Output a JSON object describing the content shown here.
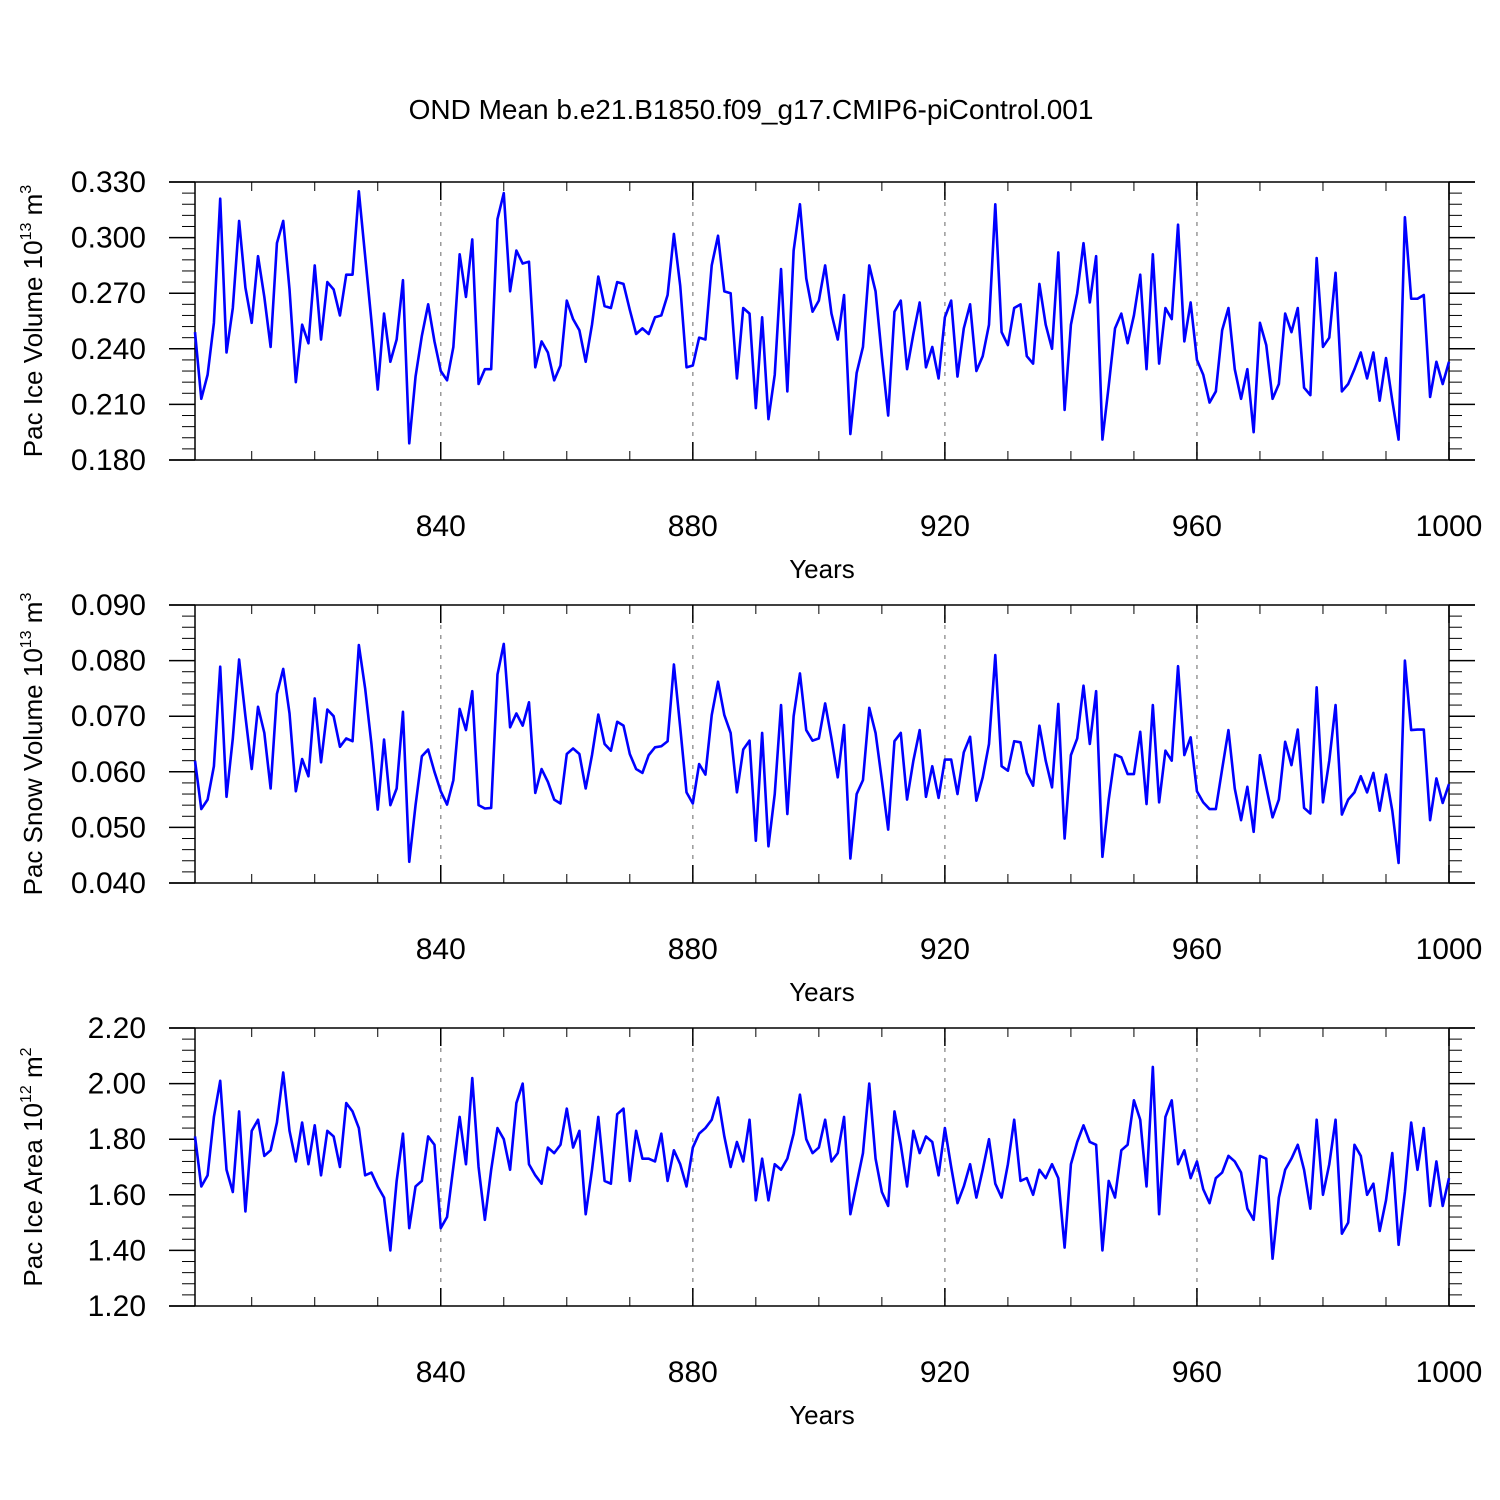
{
  "title": "OND Mean b.e21.B1850.f09_g17.CMIP6-piControl.001",
  "colors": {
    "series": "#0000ff",
    "axis": "#000000",
    "grid": "#999999"
  },
  "chart_data": [
    {
      "type": "line",
      "ylabel_main": "Pac Ice Volume 10",
      "ylabel_exp": "13",
      "ylabel_unit": " m",
      "ylabel_unit_exp": "3",
      "xlabel": "Years",
      "xlim": [
        801,
        1000
      ],
      "ylim": [
        0.18,
        0.33
      ],
      "xticks": [
        840,
        880,
        920,
        960,
        1000
      ],
      "xtick_labels": [
        "840",
        "880",
        "920",
        "960",
        "1000"
      ],
      "yticks": [
        0.18,
        0.21,
        0.24,
        0.27,
        0.3,
        0.33
      ],
      "ytick_labels": [
        "0.180",
        "0.210",
        "0.240",
        "0.270",
        "0.300",
        "0.330"
      ],
      "grid_x": [
        840,
        880,
        920,
        960
      ],
      "series": [
        {
          "name": "Pac Ice Volume",
          "x_start": 801,
          "values": [
            0.249,
            0.213,
            0.226,
            0.254,
            0.321,
            0.238,
            0.262,
            0.309,
            0.273,
            0.254,
            0.29,
            0.268,
            0.241,
            0.297,
            0.309,
            0.272,
            0.222,
            0.253,
            0.243,
            0.285,
            0.245,
            0.276,
            0.272,
            0.258,
            0.28,
            0.28,
            0.325,
            0.29,
            0.255,
            0.218,
            0.259,
            0.233,
            0.245,
            0.277,
            0.189,
            0.225,
            0.247,
            0.264,
            0.244,
            0.228,
            0.223,
            0.241,
            0.291,
            0.268,
            0.299,
            0.221,
            0.229,
            0.229,
            0.31,
            0.324,
            0.271,
            0.293,
            0.286,
            0.287,
            0.23,
            0.244,
            0.238,
            0.223,
            0.231,
            0.266,
            0.256,
            0.25,
            0.233,
            0.253,
            0.279,
            0.263,
            0.262,
            0.276,
            0.275,
            0.261,
            0.248,
            0.251,
            0.248,
            0.257,
            0.258,
            0.269,
            0.302,
            0.274,
            0.23,
            0.231,
            0.246,
            0.245,
            0.285,
            0.301,
            0.271,
            0.27,
            0.224,
            0.262,
            0.259,
            0.208,
            0.257,
            0.202,
            0.226,
            0.283,
            0.217,
            0.293,
            0.318,
            0.278,
            0.26,
            0.266,
            0.285,
            0.259,
            0.245,
            0.269,
            0.194,
            0.227,
            0.241,
            0.285,
            0.271,
            0.236,
            0.204,
            0.26,
            0.266,
            0.229,
            0.248,
            0.265,
            0.23,
            0.241,
            0.224,
            0.257,
            0.266,
            0.225,
            0.251,
            0.264,
            0.228,
            0.236,
            0.253,
            0.318,
            0.249,
            0.242,
            0.262,
            0.264,
            0.236,
            0.232,
            0.275,
            0.253,
            0.24,
            0.292,
            0.207,
            0.253,
            0.27,
            0.297,
            0.265,
            0.29,
            0.191,
            0.22,
            0.251,
            0.259,
            0.243,
            0.258,
            0.28,
            0.229,
            0.291,
            0.232,
            0.262,
            0.256,
            0.307,
            0.244,
            0.265,
            0.234,
            0.226,
            0.211,
            0.217,
            0.25,
            0.262,
            0.229,
            0.213,
            0.229,
            0.195,
            0.254,
            0.242,
            0.213,
            0.221,
            0.259,
            0.249,
            0.262,
            0.219,
            0.215,
            0.289,
            0.241,
            0.246,
            0.281,
            0.217,
            0.221,
            0.229,
            0.238,
            0.224,
            0.238,
            0.212,
            0.235,
            0.212,
            0.191,
            0.311,
            0.267,
            0.267,
            0.269,
            0.214,
            0.233,
            0.221,
            0.233
          ]
        }
      ]
    },
    {
      "type": "line",
      "ylabel_main": "Pac Snow Volume 10",
      "ylabel_exp": "13",
      "ylabel_unit": " m",
      "ylabel_unit_exp": "3",
      "xlabel": "Years",
      "xlim": [
        801,
        1000
      ],
      "ylim": [
        0.04,
        0.09
      ],
      "xticks": [
        840,
        880,
        920,
        960,
        1000
      ],
      "xtick_labels": [
        "840",
        "880",
        "920",
        "960",
        "1000"
      ],
      "yticks": [
        0.04,
        0.05,
        0.06,
        0.07,
        0.08,
        0.09
      ],
      "ytick_labels": [
        "0.040",
        "0.050",
        "0.060",
        "0.070",
        "0.080",
        "0.090"
      ],
      "grid_x": [
        840,
        880,
        920,
        960
      ],
      "series": [
        {
          "name": "Pac Snow Volume",
          "x_start": 801,
          "values": [
            0.062,
            0.0533,
            0.055,
            0.061,
            0.0789,
            0.0555,
            0.066,
            0.0802,
            0.07,
            0.0605,
            0.0717,
            0.067,
            0.057,
            0.074,
            0.0785,
            0.0705,
            0.0565,
            0.0623,
            0.0592,
            0.0732,
            0.0617,
            0.0712,
            0.07,
            0.0645,
            0.066,
            0.0655,
            0.0828,
            0.075,
            0.065,
            0.0532,
            0.0658,
            0.054,
            0.057,
            0.0708,
            0.0438,
            0.054,
            0.0628,
            0.064,
            0.06,
            0.0565,
            0.0541,
            0.0585,
            0.0713,
            0.0675,
            0.0745,
            0.054,
            0.0534,
            0.0535,
            0.0775,
            0.083,
            0.068,
            0.0705,
            0.0683,
            0.0725,
            0.0562,
            0.0605,
            0.0582,
            0.055,
            0.0543,
            0.0632,
            0.0642,
            0.0632,
            0.057,
            0.063,
            0.0703,
            0.065,
            0.0638,
            0.069,
            0.0683,
            0.0632,
            0.0605,
            0.0598,
            0.063,
            0.0644,
            0.0646,
            0.0655,
            0.0793,
            0.068,
            0.0563,
            0.0543,
            0.0614,
            0.0595,
            0.0702,
            0.0762,
            0.0702,
            0.067,
            0.0563,
            0.064,
            0.0656,
            0.0476,
            0.067,
            0.0466,
            0.056,
            0.072,
            0.0524,
            0.07,
            0.0777,
            0.0675,
            0.0656,
            0.066,
            0.0723,
            0.066,
            0.059,
            0.0684,
            0.0444,
            0.056,
            0.0585,
            0.0715,
            0.067,
            0.0585,
            0.0496,
            0.0655,
            0.067,
            0.055,
            0.062,
            0.0675,
            0.0555,
            0.061,
            0.0553,
            0.0622,
            0.0622,
            0.056,
            0.0635,
            0.0663,
            0.0548,
            0.059,
            0.065,
            0.081,
            0.061,
            0.0602,
            0.0655,
            0.0653,
            0.0598,
            0.0575,
            0.0683,
            0.062,
            0.0572,
            0.0722,
            0.048,
            0.063,
            0.066,
            0.0755,
            0.065,
            0.0745,
            0.0447,
            0.055,
            0.0631,
            0.0626,
            0.0596,
            0.0596,
            0.0672,
            0.0542,
            0.072,
            0.0545,
            0.0638,
            0.062,
            0.079,
            0.063,
            0.0662,
            0.0565,
            0.0545,
            0.0533,
            0.0533,
            0.0605,
            0.0675,
            0.057,
            0.0513,
            0.0573,
            0.0492,
            0.063,
            0.0573,
            0.0518,
            0.055,
            0.0654,
            0.0612,
            0.0676,
            0.0535,
            0.0525,
            0.0752,
            0.0545,
            0.062,
            0.072,
            0.0523,
            0.055,
            0.0563,
            0.0592,
            0.0563,
            0.0598,
            0.053,
            0.0595,
            0.053,
            0.0436,
            0.08,
            0.0675,
            0.0676,
            0.0676,
            0.0513,
            0.0588,
            0.0544,
            0.0578
          ]
        }
      ]
    },
    {
      "type": "line",
      "ylabel_main": "Pac Ice Area 10",
      "ylabel_exp": "12",
      "ylabel_unit": " m",
      "ylabel_unit_exp": "2",
      "xlabel": "Years",
      "xlim": [
        801,
        1000
      ],
      "ylim": [
        1.2,
        2.2
      ],
      "xticks": [
        840,
        880,
        920,
        960,
        1000
      ],
      "xtick_labels": [
        "840",
        "880",
        "920",
        "960",
        "1000"
      ],
      "yticks": [
        1.2,
        1.4,
        1.6,
        1.8,
        2.0,
        2.2
      ],
      "ytick_labels": [
        "1.20",
        "1.40",
        "1.60",
        "1.80",
        "2.00",
        "2.20"
      ],
      "grid_x": [
        840,
        880,
        920,
        960
      ],
      "series": [
        {
          "name": "Pac Ice Area",
          "x_start": 801,
          "values": [
            1.81,
            1.63,
            1.67,
            1.88,
            2.01,
            1.69,
            1.61,
            1.9,
            1.54,
            1.83,
            1.87,
            1.74,
            1.76,
            1.86,
            2.04,
            1.83,
            1.72,
            1.86,
            1.71,
            1.85,
            1.67,
            1.83,
            1.81,
            1.7,
            1.93,
            1.9,
            1.84,
            1.67,
            1.68,
            1.63,
            1.59,
            1.4,
            1.65,
            1.82,
            1.48,
            1.63,
            1.65,
            1.81,
            1.78,
            1.48,
            1.52,
            1.7,
            1.88,
            1.71,
            2.02,
            1.7,
            1.51,
            1.69,
            1.84,
            1.8,
            1.69,
            1.93,
            2.0,
            1.71,
            1.67,
            1.64,
            1.77,
            1.75,
            1.78,
            1.91,
            1.77,
            1.83,
            1.53,
            1.69,
            1.88,
            1.65,
            1.64,
            1.89,
            1.91,
            1.65,
            1.83,
            1.73,
            1.73,
            1.72,
            1.82,
            1.65,
            1.76,
            1.71,
            1.63,
            1.77,
            1.82,
            1.84,
            1.87,
            1.95,
            1.81,
            1.7,
            1.79,
            1.72,
            1.87,
            1.58,
            1.73,
            1.58,
            1.71,
            1.69,
            1.73,
            1.82,
            1.96,
            1.8,
            1.75,
            1.77,
            1.87,
            1.72,
            1.75,
            1.88,
            1.53,
            1.64,
            1.75,
            2.0,
            1.73,
            1.61,
            1.56,
            1.9,
            1.78,
            1.63,
            1.83,
            1.75,
            1.81,
            1.79,
            1.67,
            1.84,
            1.7,
            1.57,
            1.63,
            1.71,
            1.59,
            1.69,
            1.8,
            1.64,
            1.59,
            1.71,
            1.87,
            1.65,
            1.66,
            1.6,
            1.69,
            1.66,
            1.71,
            1.66,
            1.41,
            1.71,
            1.79,
            1.85,
            1.79,
            1.78,
            1.4,
            1.65,
            1.59,
            1.76,
            1.78,
            1.94,
            1.87,
            1.63,
            2.06,
            1.53,
            1.88,
            1.94,
            1.71,
            1.76,
            1.66,
            1.72,
            1.62,
            1.57,
            1.66,
            1.68,
            1.74,
            1.72,
            1.68,
            1.55,
            1.51,
            1.74,
            1.73,
            1.37,
            1.59,
            1.69,
            1.73,
            1.78,
            1.69,
            1.55,
            1.87,
            1.6,
            1.71,
            1.87,
            1.46,
            1.5,
            1.78,
            1.74,
            1.6,
            1.64,
            1.47,
            1.58,
            1.75,
            1.42,
            1.61,
            1.86,
            1.69,
            1.84,
            1.56,
            1.72,
            1.56,
            1.66
          ]
        }
      ]
    }
  ]
}
